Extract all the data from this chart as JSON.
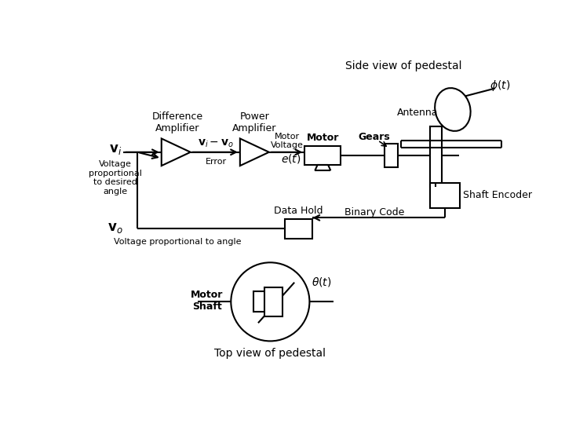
{
  "bg_color": "#ffffff",
  "line_color": "#000000",
  "fig_width": 7.2,
  "fig_height": 5.4,
  "title": "Side view of pedestal",
  "labels": {
    "diff_amp": "Difference\nAmplifier",
    "power_amp": "Power\nAmplifier",
    "motor_voltage": "Motor\nVoltage",
    "gears": "Gears",
    "motor": "Motor",
    "shaft_encoder": "Shaft Encoder",
    "data_hold": "Data Hold",
    "binary_code": "Binary Code",
    "antenna": "Antenna",
    "motor_shaft": "Motor\nShaft",
    "top_view": "Top view of pedestal",
    "vi_label": "Voltage\nproportional\nto desired\nangle",
    "vo_label": "Voltage proportional to angle",
    "error": "Error"
  }
}
